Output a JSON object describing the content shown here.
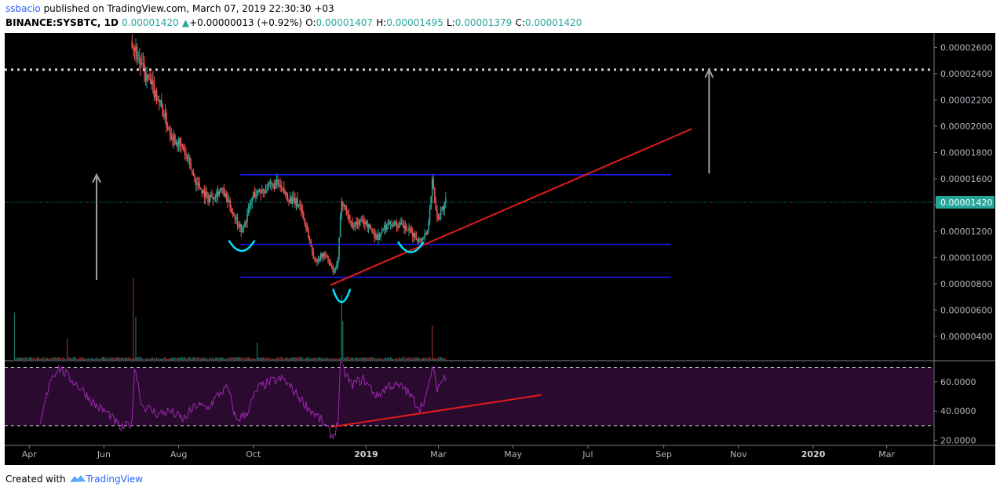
{
  "header": {
    "author": "ssbacio",
    "published_text": " published on TradingView.com, March 07, 2019 22:30:30 +03",
    "symbol": "BINANCE:SYSBTC, 1D",
    "last": "0.00001420",
    "change_arrow": "▲",
    "change": "+0.00000013 (+0.92%)",
    "o_label": "O:",
    "o": "0.00001407",
    "h_label": "H:",
    "h": "0.00001495",
    "l_label": "L:",
    "l": "0.00001379",
    "c_label": "C:",
    "c": "0.00001420"
  },
  "footer": {
    "created": "Created with",
    "brand": "TradingView"
  },
  "colors": {
    "background": "#000000",
    "up": "#26a69a",
    "down": "#ef5350",
    "level_line": "#1a1aff",
    "trend_line": "#e31b1b",
    "arc": "#00e5ff",
    "arrow": "#a0a0a0",
    "rsi": "#9c27b0",
    "rsi_band": "#2a0b2f",
    "price_tag": "#26a69a"
  },
  "chart_data": {
    "type": "candlestick",
    "symbol": "BINANCE:SYSBTC",
    "timeframe": "1D",
    "y_axis": {
      "range": [
        2.2e-06,
        2.71e-05
      ],
      "ticks": [
        "0.00000400",
        "0.00000600",
        "0.00000800",
        "0.00001000",
        "0.00001200",
        "0.00001400",
        "0.00001600",
        "0.00001800",
        "0.00002000",
        "0.00002200",
        "0.00002400",
        "0.00002600"
      ]
    },
    "x_axis": {
      "range": [
        "2018-03-12",
        "2020-04-08"
      ],
      "ticks": [
        {
          "label": "Apr",
          "date": "2018-04-01",
          "bold": false
        },
        {
          "label": "Jun",
          "date": "2018-06-01",
          "bold": false
        },
        {
          "label": "Aug",
          "date": "2018-08-01",
          "bold": false
        },
        {
          "label": "Oct",
          "date": "2018-10-01",
          "bold": false
        },
        {
          "label": "2019",
          "date": "2019-01-01",
          "bold": true
        },
        {
          "label": "Mar",
          "date": "2019-03-01",
          "bold": false
        },
        {
          "label": "May",
          "date": "2019-05-01",
          "bold": false
        },
        {
          "label": "Jul",
          "date": "2019-07-01",
          "bold": false
        },
        {
          "label": "Sep",
          "date": "2019-09-01",
          "bold": false
        },
        {
          "label": "Nov",
          "date": "2019-11-01",
          "bold": false
        },
        {
          "label": "2020",
          "date": "2020-01-01",
          "bold": true
        },
        {
          "label": "Mar",
          "date": "2020-03-01",
          "bold": false
        }
      ]
    },
    "price_series": {
      "start": "2018-06-24",
      "end": "2019-03-07",
      "anchors": [
        [
          "2018-06-24",
          2.65e-05
        ],
        [
          "2018-07-05",
          2.38e-05
        ],
        [
          "2018-07-15",
          2.22e-05
        ],
        [
          "2018-07-25",
          1.95e-05
        ],
        [
          "2018-08-05",
          1.82e-05
        ],
        [
          "2018-08-15",
          1.58e-05
        ],
        [
          "2018-08-25",
          1.45e-05
        ],
        [
          "2018-09-05",
          1.52e-05
        ],
        [
          "2018-09-15",
          1.33e-05
        ],
        [
          "2018-09-22",
          1.2e-05
        ],
        [
          "2018-10-01",
          1.48e-05
        ],
        [
          "2018-10-10",
          1.52e-05
        ],
        [
          "2018-10-20",
          1.56e-05
        ],
        [
          "2018-10-30",
          1.45e-05
        ],
        [
          "2018-11-08",
          1.4e-05
        ],
        [
          "2018-11-14",
          1.2e-05
        ],
        [
          "2018-11-20",
          9.7e-06
        ],
        [
          "2018-11-28",
          1.03e-05
        ],
        [
          "2018-12-06",
          8.8e-06
        ],
        [
          "2018-12-09",
          9.8e-06
        ],
        [
          "2018-12-12",
          1.45e-05
        ],
        [
          "2018-12-20",
          1.25e-05
        ],
        [
          "2018-12-30",
          1.28e-05
        ],
        [
          "2019-01-10",
          1.15e-05
        ],
        [
          "2019-01-20",
          1.27e-05
        ],
        [
          "2019-02-01",
          1.23e-05
        ],
        [
          "2019-02-14",
          1.13e-05
        ],
        [
          "2019-02-20",
          1.2e-05
        ],
        [
          "2019-02-24",
          1.58e-05
        ],
        [
          "2019-02-28",
          1.3e-05
        ],
        [
          "2019-03-07",
          1.42e-05
        ]
      ]
    },
    "last_price": 1.42e-05,
    "volume_spikes": [
      {
        "date": "2018-03-20",
        "size": 0.55
      },
      {
        "date": "2018-05-02",
        "size": 0.25
      },
      {
        "date": "2018-06-25",
        "size": 0.95
      },
      {
        "date": "2018-06-27",
        "size": 0.5
      },
      {
        "date": "2018-10-04",
        "size": 0.2
      },
      {
        "date": "2018-12-12",
        "size": 0.75
      },
      {
        "date": "2018-12-13",
        "size": 0.45
      },
      {
        "date": "2019-02-24",
        "size": 0.4
      }
    ],
    "rsi": {
      "y_range": [
        17,
        74
      ],
      "ticks": [
        "20.0000",
        "40.0000",
        "60.0000"
      ],
      "overbought": 70,
      "oversold": 30,
      "anchors": [
        [
          "2018-04-10",
          30
        ],
        [
          "2018-04-18",
          62
        ],
        [
          "2018-04-25",
          70
        ],
        [
          "2018-05-05",
          62
        ],
        [
          "2018-05-15",
          54
        ],
        [
          "2018-05-25",
          44
        ],
        [
          "2018-06-05",
          38
        ],
        [
          "2018-06-15",
          28
        ],
        [
          "2018-06-24",
          32
        ],
        [
          "2018-06-26",
          72
        ],
        [
          "2018-07-02",
          44
        ],
        [
          "2018-07-15",
          38
        ],
        [
          "2018-07-25",
          40
        ],
        [
          "2018-08-05",
          34
        ],
        [
          "2018-08-15",
          44
        ],
        [
          "2018-08-25",
          42
        ],
        [
          "2018-09-03",
          52
        ],
        [
          "2018-09-10",
          56
        ],
        [
          "2018-09-17",
          34
        ],
        [
          "2018-09-25",
          38
        ],
        [
          "2018-10-05",
          56
        ],
        [
          "2018-10-15",
          60
        ],
        [
          "2018-10-25",
          62
        ],
        [
          "2018-11-05",
          52
        ],
        [
          "2018-11-15",
          42
        ],
        [
          "2018-11-25",
          34
        ],
        [
          "2018-12-05",
          22
        ],
        [
          "2018-12-09",
          32
        ],
        [
          "2018-12-11",
          72
        ],
        [
          "2018-12-20",
          58
        ],
        [
          "2018-12-30",
          62
        ],
        [
          "2019-01-10",
          50
        ],
        [
          "2019-01-20",
          58
        ],
        [
          "2019-02-01",
          56
        ],
        [
          "2019-02-14",
          42
        ],
        [
          "2019-02-20",
          52
        ],
        [
          "2019-02-24",
          70
        ],
        [
          "2019-02-28",
          56
        ],
        [
          "2019-03-07",
          64
        ]
      ]
    },
    "drawings": {
      "horizontal_levels": [
        {
          "price": 1.63e-05,
          "from": "2018-09-20",
          "to": "2019-09-07"
        },
        {
          "price": 1.1e-05,
          "from": "2018-09-20",
          "to": "2019-09-07"
        },
        {
          "price": 8.5e-06,
          "from": "2018-09-20",
          "to": "2019-09-07"
        }
      ],
      "target_dotted_line": {
        "price": 2.43e-05
      },
      "trendline": {
        "from": [
          "2018-12-03",
          7.9e-06
        ],
        "to": [
          "2019-09-24",
          1.98e-05
        ]
      },
      "rsi_trendline": {
        "from": [
          "2018-12-03",
          29
        ],
        "to": [
          "2019-05-24",
          51
        ]
      },
      "arcs": [
        {
          "from": [
            "2018-09-11",
            1.13e-05
          ],
          "to": [
            "2018-10-02",
            1.13e-05
          ],
          "depth": 8e-07
        },
        {
          "from": [
            "2018-12-05",
            7.6e-06
          ],
          "to": [
            "2018-12-19",
            7.6e-06
          ],
          "depth": 1e-06
        },
        {
          "from": [
            "2019-01-27",
            1.12e-05
          ],
          "to": [
            "2019-02-17",
            1.12e-05
          ],
          "depth": 8e-07
        }
      ],
      "arrows": [
        {
          "date": "2018-05-26",
          "from": 8.3e-06,
          "to": 1.63e-05
        },
        {
          "date": "2019-10-08",
          "from": 1.64e-05,
          "to": 2.43e-05
        }
      ]
    }
  }
}
